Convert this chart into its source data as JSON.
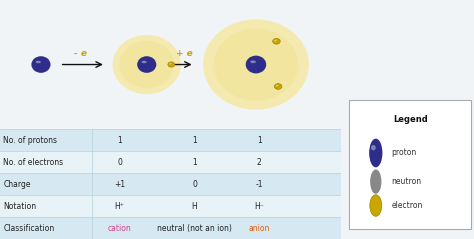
{
  "bg_color": "#f0f4f7",
  "diagram_bg": "#ffffff",
  "table_row_colors_odd": "#d6e8f2",
  "table_row_colors_even": "#e8f3f8",
  "table_border_color": "#b8d0dc",
  "atom_fill": "#f5e9a8",
  "atom_stroke": "#e0cc60",
  "proton_color": "#2e2e8a",
  "neutron_color": "#888888",
  "electron_color": "#c8a800",
  "electron_border": "#a08000",
  "arrow_color": "#111111",
  "cation_color": "#cc4488",
  "anion_color": "#dd6010",
  "legend_bg": "#ffffff",
  "legend_border": "#aaaaaa",
  "rows": [
    {
      "label": "No. of protons",
      "c1": "1",
      "c2": "1",
      "c3": "1"
    },
    {
      "label": "No. of electrons",
      "c1": "0",
      "c2": "1",
      "c3": "2"
    },
    {
      "label": "Charge",
      "c1": "+1",
      "c2": "0",
      "c3": "-1"
    },
    {
      "label": "Notation",
      "c1": "H⁺",
      "c2": "H",
      "c3": "H⁻"
    },
    {
      "label": "Classification",
      "c1": "cation",
      "c2": "neutral (not an ion)",
      "c3": "anion"
    }
  ]
}
